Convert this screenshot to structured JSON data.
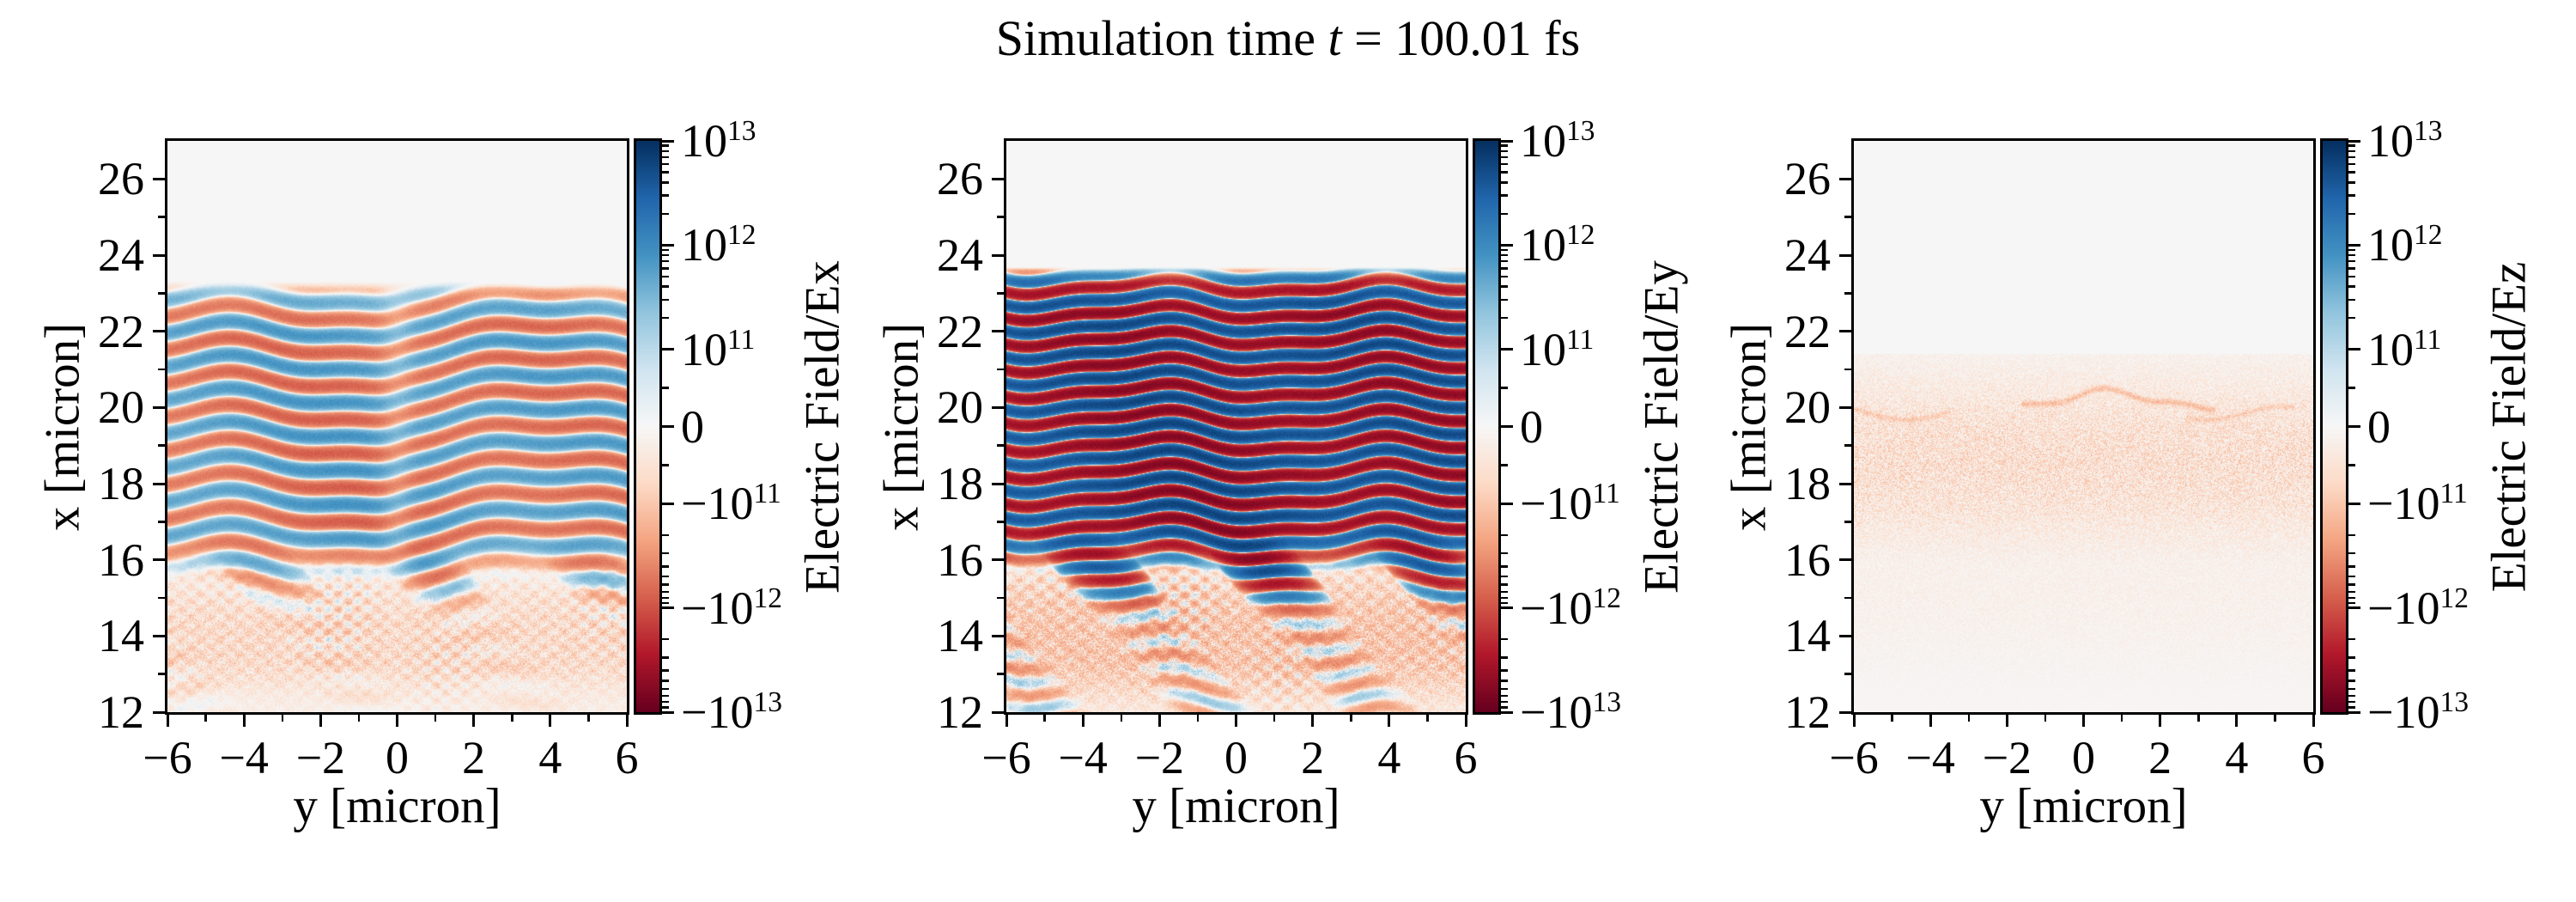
{
  "title": {
    "prefix": "Simulation time ",
    "variable": "t",
    "suffix": " = 100.01 fs"
  },
  "colormap": {
    "name": "RdBu",
    "stops": [
      "#67001f",
      "#b2182b",
      "#d6604d",
      "#f4a582",
      "#fddbc7",
      "#f7f7f7",
      "#d1e5f0",
      "#92c5de",
      "#4393c3",
      "#2166ac",
      "#053061"
    ]
  },
  "scale": {
    "type": "symlog",
    "vmin": -10000000000000.0,
    "vmax": 10000000000000.0,
    "linthresh": 100000000000.0,
    "linear_fraction": 0.27,
    "decade_fraction": 0.365
  },
  "chart_data": [
    {
      "type": "heatmap",
      "field": "Ex",
      "xlabel": "y [micron]",
      "ylabel": "x [micron]",
      "xlim": [
        -6,
        6
      ],
      "ylim": [
        12,
        27
      ],
      "x_major_ticks": [
        -6,
        -4,
        -2,
        0,
        2,
        4,
        6
      ],
      "y_major_ticks": [
        26,
        24,
        22,
        20,
        18,
        16,
        14,
        12
      ],
      "minor_tick_step": 1,
      "colorbar": {
        "label": "Electric Field/Ex",
        "major_ticks": [
          "10^13",
          "10^12",
          "10^11",
          "0",
          "-10^11",
          "-10^12",
          "-10^13"
        ]
      },
      "pattern": {
        "kind": "laser-stripes",
        "wavefront_x_um": 23.35,
        "wavelength_um": 0.9,
        "peak_field": 1050000000000.0,
        "phase_flip_at_y": 0,
        "stripe_zone_x": [
          16.5,
          23.4
        ],
        "breakup_zone_x": [
          15.3,
          16.9
        ],
        "fan_zone_x": [
          12,
          16.4
        ],
        "fan_field": 170000000000.0,
        "speckle_field": 80000000000.0,
        "seed": 11
      }
    },
    {
      "type": "heatmap",
      "field": "Ey",
      "xlabel": "y [micron]",
      "ylabel": "x [micron]",
      "xlim": [
        -6,
        6
      ],
      "ylim": [
        12,
        27
      ],
      "x_major_ticks": [
        -6,
        -4,
        -2,
        0,
        2,
        4,
        6
      ],
      "y_major_ticks": [
        26,
        24,
        22,
        20,
        18,
        16,
        14,
        12
      ],
      "minor_tick_step": 1,
      "colorbar": {
        "label": "Electric Field/Ey",
        "major_ticks": [
          "10^13",
          "10^12",
          "10^11",
          "0",
          "-10^11",
          "-10^12",
          "-10^13"
        ]
      },
      "pattern": {
        "kind": "laser-stripes",
        "wavefront_x_um": 23.7,
        "wavelength_um": 0.7,
        "peak_field": 8000000000000.0,
        "phase_flip_at_y": null,
        "stripe_zone_x": [
          16.8,
          23.7
        ],
        "breakup_zone_x": [
          15.6,
          17.2
        ],
        "fan_zone_x": [
          12,
          16.6
        ],
        "fan_field": 260000000000.0,
        "speckle_field": 140000000000.0,
        "seed": 22
      }
    },
    {
      "type": "heatmap",
      "field": "Ez",
      "xlabel": "y [micron]",
      "ylabel": "x [micron]",
      "xlim": [
        -6,
        6
      ],
      "ylim": [
        12,
        27
      ],
      "x_major_ticks": [
        -6,
        -4,
        -2,
        0,
        2,
        4,
        6
      ],
      "y_major_ticks": [
        26,
        24,
        22,
        20,
        18,
        16,
        14,
        12
      ],
      "minor_tick_step": 1,
      "colorbar": {
        "label": "Electric Field/Ez",
        "major_ticks": [
          "10^13",
          "10^12",
          "10^11",
          "0",
          "-10^11",
          "-10^12",
          "-10^13"
        ]
      },
      "pattern": {
        "kind": "speckle",
        "band_center_x": 18.6,
        "band_sigma": 2.5,
        "speckle_field": 45000000000.0,
        "arc_x_um": 20.2,
        "arc_field": -90000000000.0,
        "seed": 33
      }
    }
  ]
}
